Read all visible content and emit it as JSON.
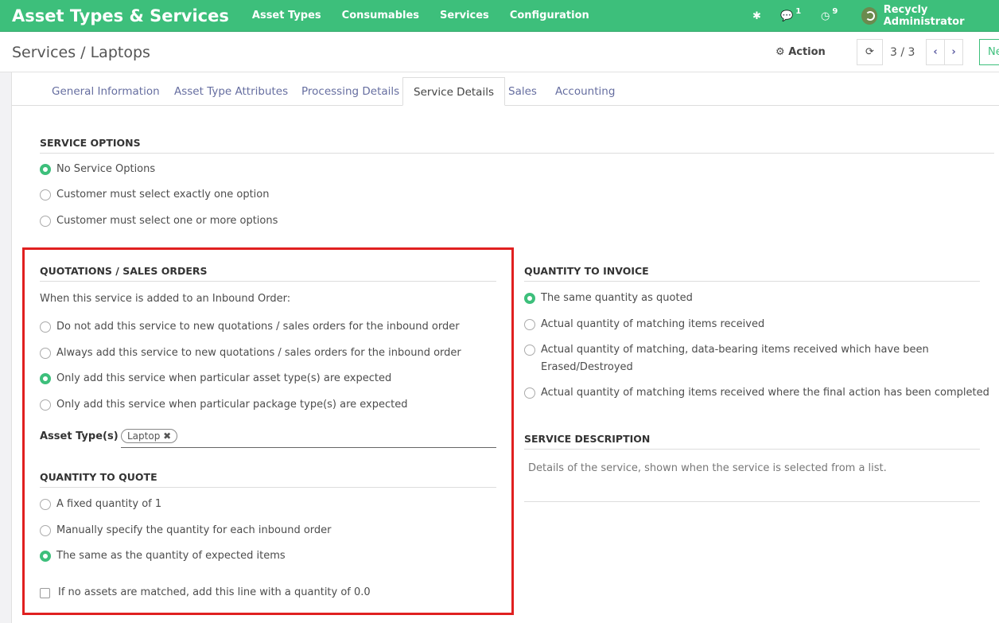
{
  "topnav": {
    "brand": "Asset Types & Services",
    "menu": [
      "Asset Types",
      "Consumables",
      "Services",
      "Configuration"
    ],
    "messages_count": "1",
    "activities_count": "9",
    "user": "Recycly Administrator"
  },
  "control_panel": {
    "breadcrumb": "Services / Laptops",
    "action_label": "Action",
    "pager": "3 / 3",
    "new_label": "Ne"
  },
  "tabs": [
    "General Information",
    "Asset Type Attributes",
    "Processing Details",
    "Service Details",
    "Sales",
    "Accounting"
  ],
  "active_tab": "Service Details",
  "service_options": {
    "title": "SERVICE OPTIONS",
    "options": [
      {
        "label": "No Service Options",
        "selected": true
      },
      {
        "label": "Customer must select exactly one option",
        "selected": false
      },
      {
        "label": "Customer must select one or more options",
        "selected": false
      }
    ]
  },
  "quotations": {
    "title": "QUOTATIONS / SALES ORDERS",
    "intro": "When this service is added to an Inbound Order:",
    "options": [
      {
        "label": "Do not add this service to new quotations / sales orders for the inbound order",
        "selected": false
      },
      {
        "label": "Always add this service to new quotations / sales orders for the inbound order",
        "selected": false
      },
      {
        "label": "Only add this service when particular asset type(s) are expected",
        "selected": true
      },
      {
        "label": "Only add this service when particular package type(s) are expected",
        "selected": false
      }
    ],
    "asset_types_label": "Asset Type(s)",
    "asset_types": [
      "Laptop"
    ]
  },
  "quantity_to_quote": {
    "title": "QUANTITY TO QUOTE",
    "options": [
      {
        "label": "A fixed quantity of 1",
        "selected": false
      },
      {
        "label": "Manually specify the quantity for each inbound order",
        "selected": false
      },
      {
        "label": "The same as the quantity of expected items",
        "selected": true
      }
    ],
    "checkbox_label": "If no assets are matched, add this line with a quantity of 0.0",
    "checkbox_checked": false
  },
  "quantity_to_invoice": {
    "title": "QUANTITY TO INVOICE",
    "options": [
      {
        "label": "The same quantity as quoted",
        "selected": true
      },
      {
        "label": "Actual quantity of matching items received",
        "selected": false
      },
      {
        "label": "Actual quantity of matching, data-bearing items received which have been\nErased/Destroyed",
        "selected": false
      },
      {
        "label": "Actual quantity of matching items received where the final action has been completed",
        "selected": false
      }
    ]
  },
  "service_description": {
    "title": "SERVICE DESCRIPTION",
    "placeholder": "Details of the service, shown when the service is selected from a list."
  },
  "colors": {
    "brand": "#3dbf7b",
    "highlight": "#e02020",
    "tab_link": "#666ea0"
  }
}
